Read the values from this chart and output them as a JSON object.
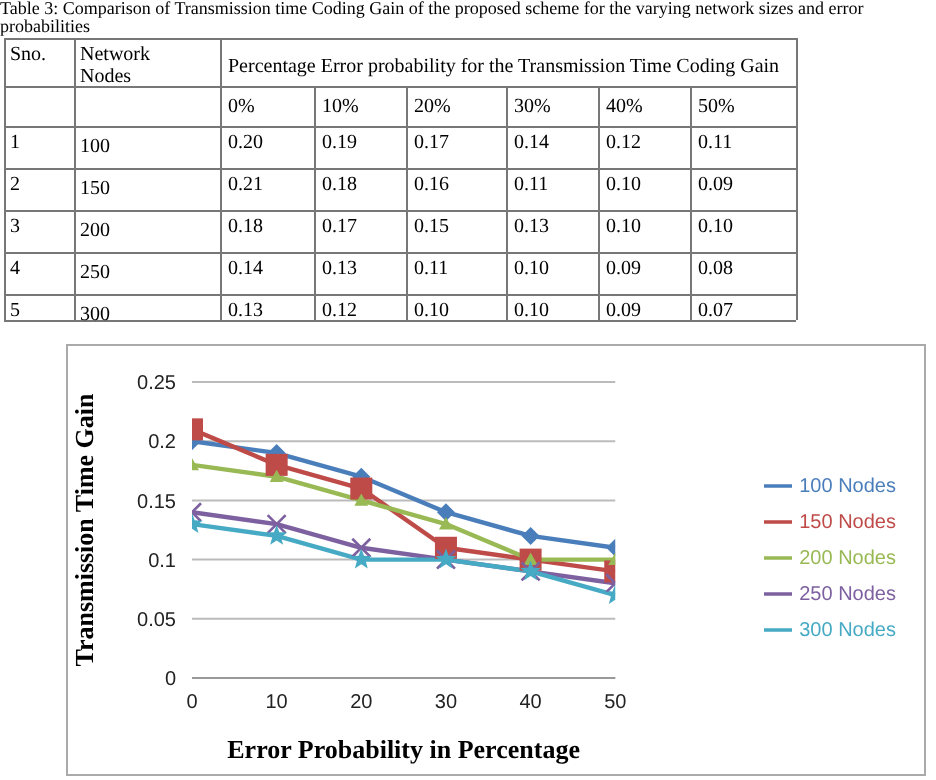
{
  "chart_data": {
    "type": "line",
    "xlabel": "Error Probability in Percentage",
    "ylabel": "Transmission Time Gain",
    "x": [
      0,
      10,
      20,
      30,
      40,
      50
    ],
    "series": [
      {
        "name": "100 Nodes",
        "color": "#4a7ebb",
        "marker": "diamond",
        "values": [
          0.2,
          0.19,
          0.17,
          0.14,
          0.12,
          0.11
        ]
      },
      {
        "name": "150 Nodes",
        "color": "#be4b48",
        "marker": "square",
        "values": [
          0.21,
          0.18,
          0.16,
          0.11,
          0.1,
          0.09
        ]
      },
      {
        "name": "200 Nodes",
        "color": "#98b954",
        "marker": "triangle",
        "values": [
          0.18,
          0.17,
          0.15,
          0.13,
          0.1,
          0.1
        ]
      },
      {
        "name": "250 Nodes",
        "color": "#7d60a0",
        "marker": "cross",
        "values": [
          0.14,
          0.13,
          0.11,
          0.1,
          0.09,
          0.08
        ]
      },
      {
        "name": "300 Nodes",
        "color": "#46aac5",
        "marker": "star",
        "values": [
          0.13,
          0.12,
          0.1,
          0.1,
          0.09,
          0.07
        ]
      }
    ],
    "xlim": [
      0,
      50
    ],
    "xticks": [
      0,
      10,
      20,
      30,
      40,
      50
    ],
    "ylim": [
      0,
      0.25
    ],
    "yticks": [
      0,
      0.05,
      0.1,
      0.15,
      0.2,
      0.25
    ],
    "grid": "y",
    "legend": "right",
    "annotations": [
      "Table 3: Comparison of Transmission time Coding Gain of the proposed scheme for the varying network sizes and error probabilities",
      "Sno.",
      "Network Nodes",
      "Percentage Error probability for the Transmission Time Coding Gain",
      "0%",
      "10%",
      "20%",
      "30%",
      "40%",
      "50%",
      "1",
      "2",
      "3",
      "4",
      "5",
      "100",
      "150",
      "200",
      "250",
      "300",
      "0.20",
      "0.19",
      "0.17",
      "0.14",
      "0.12",
      "0.11",
      "0.21",
      "0.18",
      "0.16",
      "0.11",
      "0.10",
      "0.09",
      "0.18",
      "0.17",
      "0.15",
      "0.13",
      "0.10",
      "0.10",
      "0.14",
      "0.13",
      "0.11",
      "0.10",
      "0.09",
      "0.08",
      "0.13",
      "0.12",
      "0.10",
      "0.10",
      "0.09",
      "0.07"
    ]
  }
}
